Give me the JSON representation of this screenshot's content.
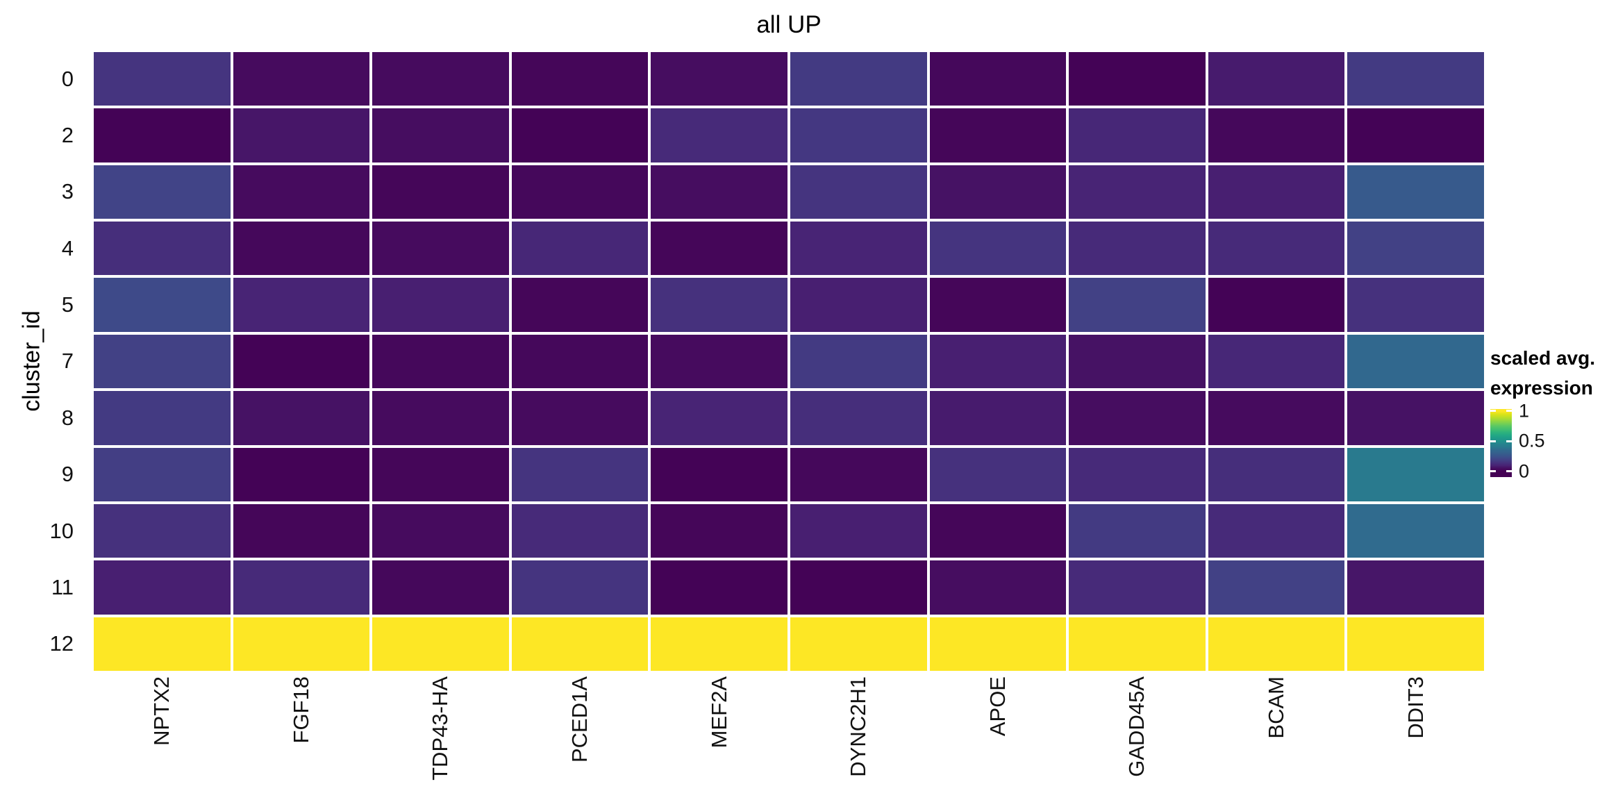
{
  "title": "all UP",
  "y_axis": {
    "label": "cluster_id",
    "ticks": [
      "0",
      "2",
      "3",
      "4",
      "5",
      "7",
      "8",
      "9",
      "10",
      "11",
      "12"
    ]
  },
  "x_axis": {
    "ticks": [
      "NPTX2",
      "FGF18",
      "TDP43-HA",
      "PCED1A",
      "MEF2A",
      "DYNC2H1",
      "APOE",
      "GADD45A",
      "BCAM",
      "DDIT3"
    ]
  },
  "legend": {
    "title_line1": "scaled avg.",
    "title_line2": "expression",
    "ticks": [
      {
        "label": "1",
        "value": 1
      },
      {
        "label": "0.5",
        "value": 0.5
      },
      {
        "label": "0",
        "value": 0
      }
    ]
  },
  "chart_data": {
    "type": "heatmap",
    "title": "all UP",
    "xlabel": "",
    "ylabel": "cluster_id",
    "legend_title": "scaled avg. expression",
    "x_categories": [
      "NPTX2",
      "FGF18",
      "TDP43-HA",
      "PCED1A",
      "MEF2A",
      "DYNC2H1",
      "APOE",
      "GADD45A",
      "BCAM",
      "DDIT3"
    ],
    "y_categories": [
      "0",
      "2",
      "3",
      "4",
      "5",
      "7",
      "8",
      "9",
      "10",
      "11",
      "12"
    ],
    "value_range": [
      0,
      1
    ],
    "grid": false,
    "legend_position": "right",
    "tile_border_color": "#ffffff",
    "background_color": "#ffffff",
    "series": [
      {
        "cluster_id": "0",
        "values": [
          0.15,
          0.04,
          0.04,
          0.02,
          0.05,
          0.17,
          0.03,
          0.01,
          0.08,
          0.17
        ]
      },
      {
        "cluster_id": "2",
        "values": [
          0.01,
          0.07,
          0.05,
          0.01,
          0.12,
          0.16,
          0.02,
          0.11,
          0.03,
          0.01
        ]
      },
      {
        "cluster_id": "3",
        "values": [
          0.2,
          0.04,
          0.02,
          0.03,
          0.05,
          0.15,
          0.06,
          0.1,
          0.09,
          0.28
        ]
      },
      {
        "cluster_id": "4",
        "values": [
          0.13,
          0.03,
          0.04,
          0.11,
          0.02,
          0.1,
          0.15,
          0.12,
          0.12,
          0.19
        ]
      },
      {
        "cluster_id": "5",
        "values": [
          0.22,
          0.1,
          0.09,
          0.02,
          0.14,
          0.09,
          0.02,
          0.19,
          0.01,
          0.14
        ]
      },
      {
        "cluster_id": "7",
        "values": [
          0.19,
          0.01,
          0.03,
          0.03,
          0.04,
          0.17,
          0.09,
          0.06,
          0.11,
          0.35
        ]
      },
      {
        "cluster_id": "8",
        "values": [
          0.17,
          0.06,
          0.04,
          0.04,
          0.1,
          0.13,
          0.08,
          0.05,
          0.04,
          0.06
        ]
      },
      {
        "cluster_id": "9",
        "values": [
          0.18,
          0.01,
          0.02,
          0.15,
          0.01,
          0.03,
          0.14,
          0.12,
          0.13,
          0.41
        ]
      },
      {
        "cluster_id": "10",
        "values": [
          0.14,
          0.02,
          0.04,
          0.12,
          0.02,
          0.09,
          0.02,
          0.17,
          0.12,
          0.36
        ]
      },
      {
        "cluster_id": "11",
        "values": [
          0.09,
          0.12,
          0.03,
          0.15,
          0.01,
          0.01,
          0.05,
          0.12,
          0.19,
          0.07
        ]
      },
      {
        "cluster_id": "12",
        "values": [
          1,
          1,
          1,
          1,
          1,
          1,
          1,
          1,
          1,
          1
        ]
      }
    ],
    "color_scale": {
      "name": "viridis",
      "domain": [
        0,
        1
      ],
      "stops": [
        [
          0.0,
          "#440154"
        ],
        [
          0.05,
          "#460d60"
        ],
        [
          0.1,
          "#482475"
        ],
        [
          0.15,
          "#45347f"
        ],
        [
          0.2,
          "#414487"
        ],
        [
          0.25,
          "#3a528b"
        ],
        [
          0.3,
          "#355f8d"
        ],
        [
          0.35,
          "#31688e"
        ],
        [
          0.4,
          "#2a788e"
        ],
        [
          0.45,
          "#26828e"
        ],
        [
          0.5,
          "#21918c"
        ],
        [
          0.55,
          "#1f9c89"
        ],
        [
          0.6,
          "#22a884"
        ],
        [
          0.65,
          "#2eb37c"
        ],
        [
          0.7,
          "#44bf70"
        ],
        [
          0.75,
          "#59c864"
        ],
        [
          0.8,
          "#7ad151"
        ],
        [
          0.85,
          "#9bd93c"
        ],
        [
          0.9,
          "#bddf26"
        ],
        [
          0.95,
          "#dde318"
        ],
        [
          1.0,
          "#fde725"
        ]
      ]
    }
  }
}
